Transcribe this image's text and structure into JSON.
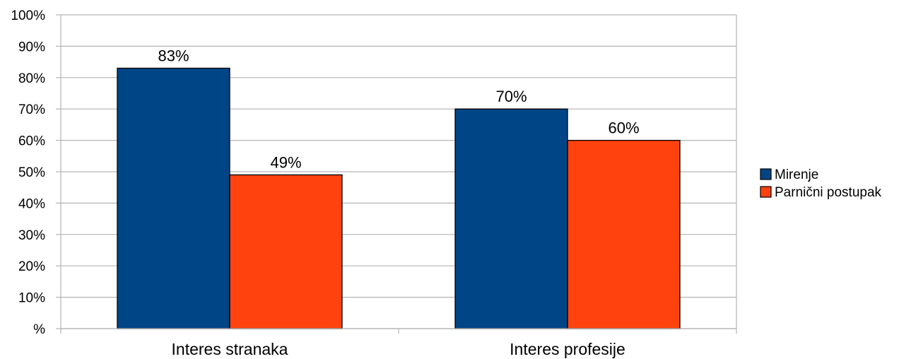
{
  "chart_data": {
    "type": "bar",
    "categories": [
      "Interes stranaka",
      "Interes profesije"
    ],
    "series": [
      {
        "name": "Mirenje",
        "values": [
          83,
          70
        ],
        "color": "#004586"
      },
      {
        "name": "Parnični postupak",
        "values": [
          49,
          60
        ],
        "color": "#ff420e"
      }
    ],
    "data_labels": [
      [
        "83%",
        "70%"
      ],
      [
        "49%",
        "60%"
      ]
    ],
    "y_ticks": [
      "%",
      "10%",
      "20%",
      "30%",
      "40%",
      "50%",
      "60%",
      "70%",
      "80%",
      "90%",
      "100%"
    ],
    "ylim": [
      0,
      100
    ],
    "grid": true,
    "legend_position": "right",
    "title": "",
    "xlabel": "",
    "ylabel": ""
  }
}
